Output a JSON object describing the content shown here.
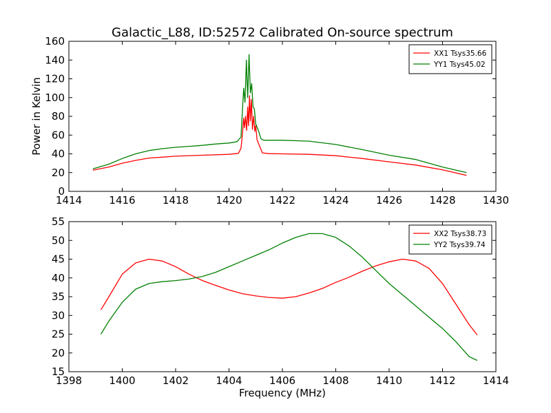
{
  "chart_data": [
    {
      "type": "line",
      "title": "Galactic_L88, ID:52572 Calibrated On-source spectrum",
      "xlabel": "",
      "ylabel": "Power in Kelvin",
      "xlim": [
        1414,
        1430
      ],
      "ylim": [
        0,
        160
      ],
      "xticks": [
        1414,
        1416,
        1418,
        1420,
        1422,
        1424,
        1426,
        1428,
        1430
      ],
      "yticks": [
        0,
        20,
        40,
        60,
        80,
        100,
        120,
        140,
        160
      ],
      "grid": false,
      "legend_position": "top-right",
      "series": [
        {
          "name": "XX1 Tsys35.66",
          "color": "#ff0000",
          "points": [
            [
              1414.9,
              22.5
            ],
            [
              1415.5,
              26
            ],
            [
              1416,
              30
            ],
            [
              1416.5,
              33
            ],
            [
              1417,
              35.5
            ],
            [
              1417.5,
              36.5
            ],
            [
              1418,
              37.5
            ],
            [
              1419,
              38.5
            ],
            [
              1420,
              39.5
            ],
            [
              1420.35,
              40.5
            ],
            [
              1420.45,
              46
            ],
            [
              1420.5,
              60
            ],
            [
              1420.55,
              78
            ],
            [
              1420.58,
              68
            ],
            [
              1420.62,
              80
            ],
            [
              1420.66,
              65
            ],
            [
              1420.7,
              90
            ],
            [
              1420.73,
              70
            ],
            [
              1420.77,
              102
            ],
            [
              1420.8,
              75
            ],
            [
              1420.84,
              98
            ],
            [
              1420.88,
              66
            ],
            [
              1420.92,
              80
            ],
            [
              1420.97,
              64
            ],
            [
              1421.0,
              70
            ],
            [
              1421.05,
              55
            ],
            [
              1421.15,
              48
            ],
            [
              1421.25,
              41
            ],
            [
              1421.5,
              40.2
            ],
            [
              1422,
              40
            ],
            [
              1423,
              39.5
            ],
            [
              1424,
              38
            ],
            [
              1425,
              35
            ],
            [
              1426,
              31.5
            ],
            [
              1427,
              28
            ],
            [
              1428,
              23
            ],
            [
              1428.9,
              17
            ]
          ]
        },
        {
          "name": "YY1 Tsys45.02",
          "color": "#008000",
          "points": [
            [
              1414.9,
              24
            ],
            [
              1415.5,
              29
            ],
            [
              1416,
              35
            ],
            [
              1416.5,
              40
            ],
            [
              1417,
              43.5
            ],
            [
              1417.5,
              45.5
            ],
            [
              1418,
              47
            ],
            [
              1418.5,
              48
            ],
            [
              1419,
              49
            ],
            [
              1419.5,
              50.5
            ],
            [
              1420,
              51.5
            ],
            [
              1420.3,
              53
            ],
            [
              1420.45,
              58
            ],
            [
              1420.5,
              85
            ],
            [
              1420.55,
              110
            ],
            [
              1420.6,
              95
            ],
            [
              1420.65,
              140
            ],
            [
              1420.7,
              100
            ],
            [
              1420.75,
              146
            ],
            [
              1420.8,
              105
            ],
            [
              1420.85,
              115
            ],
            [
              1420.9,
              90
            ],
            [
              1420.95,
              88
            ],
            [
              1421.0,
              72
            ],
            [
              1421.1,
              65
            ],
            [
              1421.2,
              56
            ],
            [
              1421.3,
              54.5
            ],
            [
              1422,
              54.5
            ],
            [
              1423,
              53.5
            ],
            [
              1424,
              50
            ],
            [
              1425,
              44.5
            ],
            [
              1426,
              38.5
            ],
            [
              1427,
              34
            ],
            [
              1428,
              26
            ],
            [
              1428.9,
              20
            ]
          ]
        }
      ]
    },
    {
      "type": "line",
      "title": "",
      "xlabel": "Frequency (MHz)",
      "ylabel": "",
      "xlim": [
        1398,
        1414
      ],
      "ylim": [
        15,
        55
      ],
      "xticks": [
        1398,
        1400,
        1402,
        1404,
        1406,
        1408,
        1410,
        1412,
        1414
      ],
      "yticks": [
        15,
        20,
        25,
        30,
        35,
        40,
        45,
        50,
        55
      ],
      "grid": false,
      "legend_position": "top-right",
      "series": [
        {
          "name": "XX2 Tsys38.73",
          "color": "#ff0000",
          "points": [
            [
              1399.2,
              31.5
            ],
            [
              1399.5,
              35
            ],
            [
              1400,
              41
            ],
            [
              1400.5,
              44
            ],
            [
              1401,
              45
            ],
            [
              1401.5,
              44.5
            ],
            [
              1402,
              43
            ],
            [
              1402.5,
              41
            ],
            [
              1403,
              39.3
            ],
            [
              1403.5,
              38
            ],
            [
              1404,
              36.8
            ],
            [
              1404.5,
              35.8
            ],
            [
              1405,
              35.2
            ],
            [
              1405.5,
              34.8
            ],
            [
              1406,
              34.6
            ],
            [
              1406.5,
              35
            ],
            [
              1407,
              36
            ],
            [
              1407.5,
              37.2
            ],
            [
              1408,
              38.8
            ],
            [
              1408.5,
              40.2
            ],
            [
              1409,
              41.8
            ],
            [
              1409.5,
              43.2
            ],
            [
              1410,
              44.3
            ],
            [
              1410.5,
              45
            ],
            [
              1411,
              44.5
            ],
            [
              1411.5,
              42.5
            ],
            [
              1412,
              38.5
            ],
            [
              1412.5,
              33
            ],
            [
              1413,
              27.5
            ],
            [
              1413.3,
              24.8
            ]
          ]
        },
        {
          "name": "YY2 Tsys39.74",
          "color": "#008000",
          "points": [
            [
              1399.2,
              25
            ],
            [
              1399.5,
              28.5
            ],
            [
              1400,
              33.5
            ],
            [
              1400.5,
              37
            ],
            [
              1401,
              38.5
            ],
            [
              1401.5,
              39
            ],
            [
              1402,
              39.3
            ],
            [
              1402.5,
              39.7
            ],
            [
              1403,
              40.4
            ],
            [
              1403.5,
              41.5
            ],
            [
              1404,
              43
            ],
            [
              1404.5,
              44.5
            ],
            [
              1405,
              46
            ],
            [
              1405.5,
              47.5
            ],
            [
              1406,
              49.3
            ],
            [
              1406.5,
              50.8
            ],
            [
              1407,
              51.8
            ],
            [
              1407.5,
              51.8
            ],
            [
              1408,
              50.8
            ],
            [
              1408.5,
              48.5
            ],
            [
              1409,
              45.5
            ],
            [
              1409.5,
              42
            ],
            [
              1410,
              38.5
            ],
            [
              1410.5,
              35.5
            ],
            [
              1411,
              32.5
            ],
            [
              1411.5,
              29.5
            ],
            [
              1412,
              26.5
            ],
            [
              1412.5,
              23
            ],
            [
              1413,
              19
            ],
            [
              1413.3,
              18
            ]
          ]
        }
      ]
    }
  ]
}
